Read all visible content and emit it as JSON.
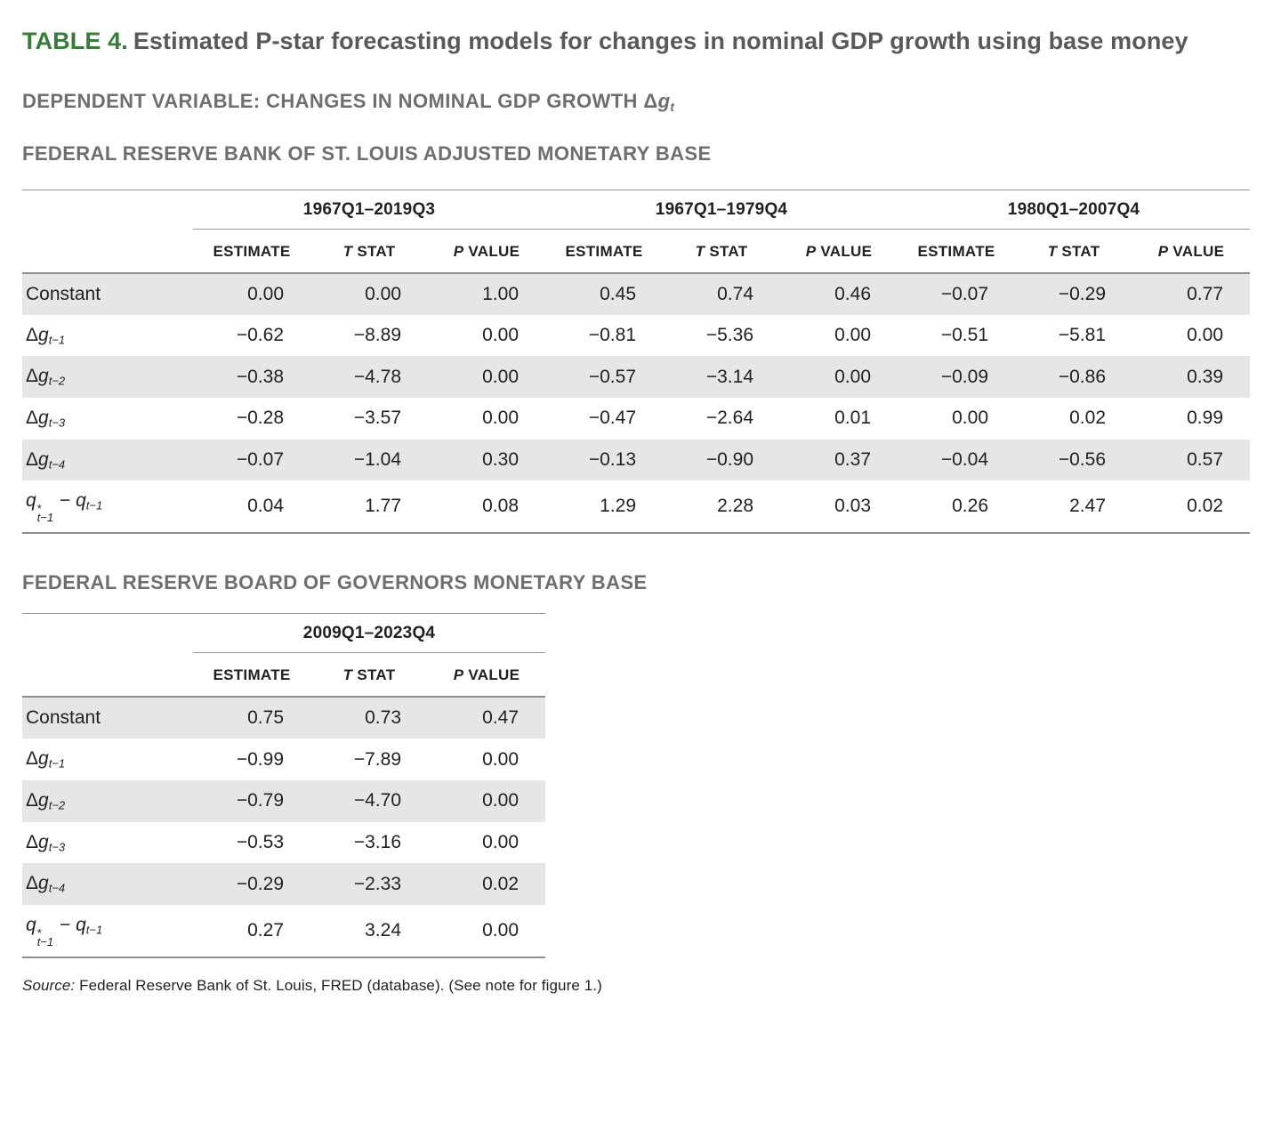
{
  "title": {
    "label": "TABLE 4.",
    "text": "Estimated P-star forecasting models for changes in nominal GDP growth using base money"
  },
  "dependent_variable": {
    "parts": [
      {
        "t": "DEPENDENT VARIABLE: CHANGES IN NOMINAL GDP GROWTH "
      },
      {
        "t": "Δ"
      },
      {
        "t": "g",
        "i": 1
      },
      {
        "t": "t",
        "sub": 1,
        "i": 1
      }
    ]
  },
  "sections": [
    {
      "heading": "FEDERAL RESERVE BANK OF ST. LOUIS ADJUSTED MONETARY BASE"
    },
    {
      "heading": "FEDERAL RESERVE BOARD OF GOVERNORS MONETARY BASE"
    }
  ],
  "stat_headers": [
    [
      {
        "t": "ESTIMATE"
      }
    ],
    [
      {
        "t": "T",
        "i": 1
      },
      {
        "t": " STAT"
      }
    ],
    [
      {
        "t": "P",
        "i": 1
      },
      {
        "t": " VALUE"
      }
    ]
  ],
  "tables": [
    {
      "periods": [
        "1967Q1–2019Q3",
        "1967Q1–1979Q4",
        "1980Q1–2007Q4"
      ],
      "rows": [
        {
          "label_parts": [
            {
              "t": "Constant"
            }
          ],
          "values": [
            "0.00",
            "0.00",
            "1.00",
            "0.45",
            "0.74",
            "0.46",
            "−0.07",
            "−0.29",
            "0.77"
          ]
        },
        {
          "label_parts": [
            {
              "t": "Δ"
            },
            {
              "t": "g",
              "i": 1
            },
            {
              "t": "t−1",
              "sub": 1,
              "i": 1
            }
          ],
          "values": [
            "−0.62",
            "−8.89",
            "0.00",
            "−0.81",
            "−5.36",
            "0.00",
            "−0.51",
            "−5.81",
            "0.00"
          ]
        },
        {
          "label_parts": [
            {
              "t": "Δ"
            },
            {
              "t": "g",
              "i": 1
            },
            {
              "t": "t−2",
              "sub": 1,
              "i": 1
            }
          ],
          "values": [
            "−0.38",
            "−4.78",
            "0.00",
            "−0.57",
            "−3.14",
            "0.00",
            "−0.09",
            "−0.86",
            "0.39"
          ]
        },
        {
          "label_parts": [
            {
              "t": "Δ"
            },
            {
              "t": "g",
              "i": 1
            },
            {
              "t": "t−3",
              "sub": 1,
              "i": 1
            }
          ],
          "values": [
            "−0.28",
            "−3.57",
            "0.00",
            "−0.47",
            "−2.64",
            "0.01",
            "0.00",
            "0.02",
            "0.99"
          ]
        },
        {
          "label_parts": [
            {
              "t": "Δ"
            },
            {
              "t": "g",
              "i": 1
            },
            {
              "t": "t−4",
              "sub": 1,
              "i": 1
            }
          ],
          "values": [
            "−0.07",
            "−1.04",
            "0.30",
            "−0.13",
            "−0.90",
            "0.37",
            "−0.04",
            "−0.56",
            "0.57"
          ]
        },
        {
          "label_parts": [
            {
              "t": "q",
              "i": 1
            },
            {
              "stack": {
                "top": "*",
                "bot": "t−1"
              }
            },
            {
              "t": " − "
            },
            {
              "t": "q",
              "i": 1
            },
            {
              "t": "t−1",
              "sub": 1,
              "i": 1
            }
          ],
          "values": [
            "0.04",
            "1.77",
            "0.08",
            "1.29",
            "2.28",
            "0.03",
            "0.26",
            "2.47",
            "0.02"
          ]
        }
      ]
    },
    {
      "periods": [
        "2009Q1–2023Q4"
      ],
      "rows": [
        {
          "label_parts": [
            {
              "t": "Constant"
            }
          ],
          "values": [
            "0.75",
            "0.73",
            "0.47"
          ]
        },
        {
          "label_parts": [
            {
              "t": "Δ"
            },
            {
              "t": "g",
              "i": 1
            },
            {
              "t": "t−1",
              "sub": 1,
              "i": 1
            }
          ],
          "values": [
            "−0.99",
            "−7.89",
            "0.00"
          ]
        },
        {
          "label_parts": [
            {
              "t": "Δ"
            },
            {
              "t": "g",
              "i": 1
            },
            {
              "t": "t−2",
              "sub": 1,
              "i": 1
            }
          ],
          "values": [
            "−0.79",
            "−4.70",
            "0.00"
          ]
        },
        {
          "label_parts": [
            {
              "t": "Δ"
            },
            {
              "t": "g",
              "i": 1
            },
            {
              "t": "t−3",
              "sub": 1,
              "i": 1
            }
          ],
          "values": [
            "−0.53",
            "−3.16",
            "0.00"
          ]
        },
        {
          "label_parts": [
            {
              "t": "Δ"
            },
            {
              "t": "g",
              "i": 1
            },
            {
              "t": "t−4",
              "sub": 1,
              "i": 1
            }
          ],
          "values": [
            "−0.29",
            "−2.33",
            "0.02"
          ]
        },
        {
          "label_parts": [
            {
              "t": "q",
              "i": 1
            },
            {
              "stack": {
                "top": "*",
                "bot": "t−1"
              }
            },
            {
              "t": " − "
            },
            {
              "t": "q",
              "i": 1
            },
            {
              "t": "t−1",
              "sub": 1,
              "i": 1
            }
          ],
          "values": [
            "0.27",
            "3.24",
            "0.00"
          ]
        }
      ]
    }
  ],
  "source": {
    "parts": [
      {
        "t": "Source:",
        "i": 1
      },
      {
        "t": " Federal Reserve Bank of St. Louis, FRED (database). (See note for figure 1.)"
      }
    ]
  },
  "colors": {
    "table_label_green": "#3a7b3c",
    "title_gray": "#58595b",
    "heading_gray": "#6d6e71",
    "body_text": "#231f20",
    "row_shade": "#e6e6e6",
    "rule_thin": "#9a9a9a",
    "rule_thick": "#8f8f8f"
  }
}
